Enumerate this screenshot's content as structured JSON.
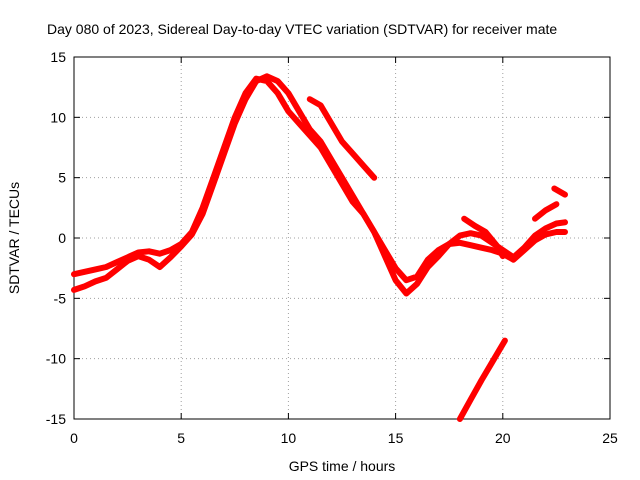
{
  "chart_data": {
    "type": "scatter",
    "title": "Day 080 of 2023, Sidereal Day-to-day VTEC variation (SDTVAR) for receiver mate",
    "xlabel": "GPS time / hours",
    "ylabel": "SDTVAR / TECUs",
    "xlim": [
      0,
      25
    ],
    "ylim": [
      -15,
      15
    ],
    "xticks": [
      0,
      5,
      10,
      15,
      20,
      25
    ],
    "yticks": [
      -15,
      -10,
      -5,
      0,
      5,
      10,
      15
    ],
    "grid": true,
    "marker_color": "#ff0000",
    "series": [
      {
        "name": "track-1",
        "x": [
          0,
          0.5,
          1,
          1.5,
          2,
          2.5,
          3,
          3.5,
          4,
          4.5,
          5,
          5.5,
          6,
          6.5,
          7,
          7.5,
          8,
          8.5,
          9,
          9.5,
          10,
          10.5,
          11,
          11.5,
          12,
          12.5,
          13,
          13.5,
          14,
          14.5,
          15,
          15.5,
          16,
          16.5,
          17,
          17.5,
          18,
          18.5,
          19,
          19.5,
          20,
          20.5,
          21,
          21.5,
          22,
          22.5,
          22.9
        ],
        "y": [
          -3,
          -2.8,
          -2.6,
          -2.4,
          -2,
          -1.6,
          -1.2,
          -1.1,
          -1.3,
          -1,
          -0.5,
          0.5,
          2.5,
          5,
          7.5,
          10,
          12,
          13.2,
          13,
          12,
          10.5,
          9.5,
          8.5,
          7.5,
          6,
          4.5,
          3,
          2,
          0.5,
          -1,
          -2.5,
          -3.5,
          -3.2,
          -1.8,
          -1,
          -0.5,
          -0.4,
          -0.6,
          -0.8,
          -1,
          -1.3,
          -1.8,
          -1,
          -0.2,
          0.3,
          0.5,
          0.5
        ]
      },
      {
        "name": "track-2",
        "x": [
          0,
          0.5,
          1,
          1.5,
          2,
          2.5,
          3,
          3.5,
          4,
          4.5,
          5,
          5.5,
          6,
          6.5,
          7,
          7.5,
          8,
          8.5,
          9,
          9.5,
          10,
          10.5,
          11,
          11.5,
          12,
          12.5,
          13,
          13.5,
          14,
          14.5,
          15,
          15.5,
          16,
          16.5,
          17,
          17.5,
          18,
          18.5,
          19,
          19.5,
          20,
          20.5,
          21,
          21.5,
          22,
          22.5,
          22.9
        ],
        "y": [
          -4.3,
          -4,
          -3.6,
          -3.3,
          -2.6,
          -1.9,
          -1.5,
          -1.8,
          -2.4,
          -1.6,
          -0.7,
          0.3,
          2,
          4.5,
          7,
          9.5,
          11.5,
          13,
          13.4,
          13,
          12,
          10.5,
          9,
          8,
          6.5,
          5,
          3.5,
          2,
          0.5,
          -1.5,
          -3.5,
          -4.6,
          -3.8,
          -2.4,
          -1.5,
          -0.5,
          0.2,
          0.4,
          0.2,
          -0.4,
          -1,
          -1.6,
          -0.8,
          0.2,
          0.8,
          1.2,
          1.3
        ]
      },
      {
        "name": "track-3",
        "x": [
          11,
          11.5,
          12,
          12.5,
          13,
          13.5,
          14
        ],
        "y": [
          11.5,
          11,
          9.5,
          8,
          7,
          6,
          5
        ]
      },
      {
        "name": "track-4",
        "x": [
          18.2,
          18.7,
          19.2,
          19.7,
          20
        ],
        "y": [
          1.6,
          1,
          0.5,
          -0.6,
          -1.5
        ]
      },
      {
        "name": "track-5",
        "x": [
          21.5,
          22,
          22.5
        ],
        "y": [
          1.6,
          2.3,
          2.8
        ]
      },
      {
        "name": "track-6",
        "x": [
          22.4,
          22.9
        ],
        "y": [
          4.1,
          3.6
        ]
      },
      {
        "name": "track-7",
        "x": [
          18,
          18.5,
          19,
          19.5,
          20.1
        ],
        "y": [
          -15,
          -13.4,
          -11.8,
          -10.3,
          -8.5
        ]
      }
    ]
  }
}
